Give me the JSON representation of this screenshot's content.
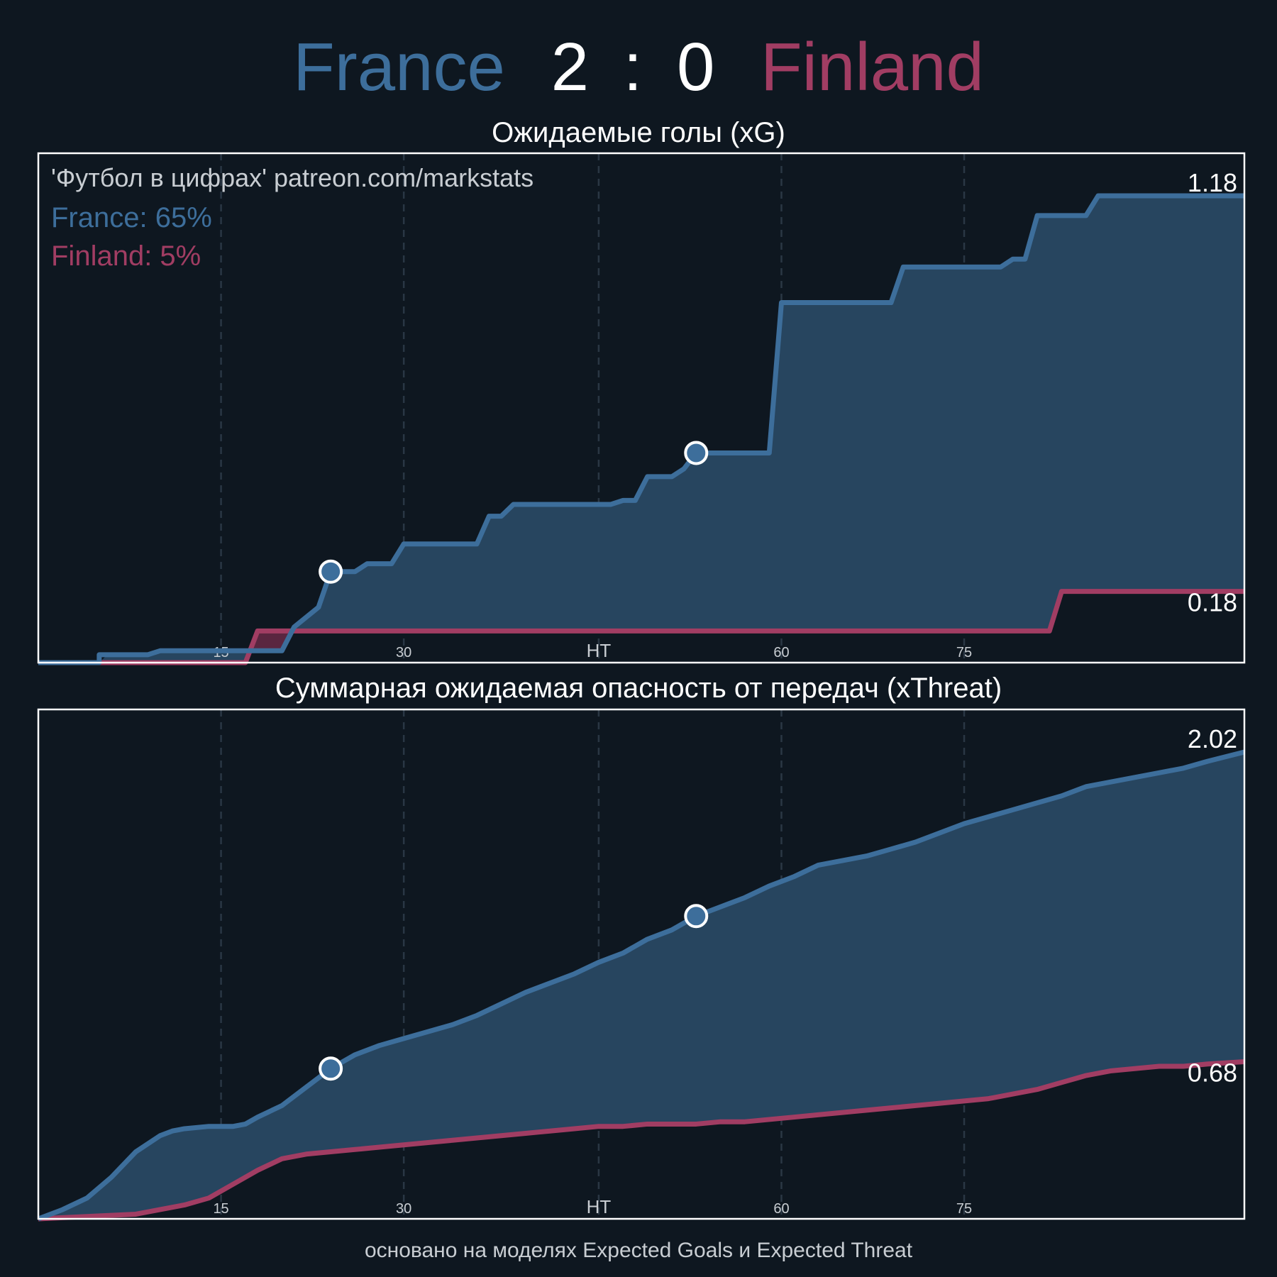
{
  "header": {
    "home_team": "France",
    "home_score": "2",
    "separator": ":",
    "away_score": "0",
    "away_team": "Finland"
  },
  "colors": {
    "home": "#3d6e9b",
    "away": "#a13d63",
    "background": "#0e1720",
    "home_fill": "#27455f",
    "away_fill": "#5a2640",
    "text": "#ffffff",
    "muted": "#c8cdd2"
  },
  "footer": {
    "note": "основано на моделях Expected Goals и Expected Threat"
  },
  "chart_data": [
    {
      "type": "line",
      "title": "Ожидаемые голы (xG)",
      "watermark": "'Футбол в цифрах' patreon.com/markstats",
      "legend_placement": "top-left",
      "legend": [
        {
          "text": "France: 65%",
          "team": "home"
        },
        {
          "text": "Finland: 5%",
          "team": "away"
        }
      ],
      "xlim": [
        0,
        99
      ],
      "ylim": [
        0,
        1.18
      ],
      "grid": true,
      "step": true,
      "ticks": [
        {
          "x": 15,
          "label": "15"
        },
        {
          "x": 30,
          "label": "30"
        },
        {
          "x": 46,
          "label": "HT"
        },
        {
          "x": 61,
          "label": "60"
        },
        {
          "x": 76,
          "label": "75"
        }
      ],
      "series": [
        {
          "name": "France",
          "team": "home",
          "end_label": "1.18",
          "points": [
            [
              0,
              0
            ],
            [
              5,
              0
            ],
            [
              5,
              0.02
            ],
            [
              9,
              0.02
            ],
            [
              10,
              0.03
            ],
            [
              12,
              0.03
            ],
            [
              16,
              0.03
            ],
            [
              20,
              0.03
            ],
            [
              21,
              0.09
            ],
            [
              23,
              0.14
            ],
            [
              24,
              0.23
            ],
            [
              26,
              0.23
            ],
            [
              27,
              0.25
            ],
            [
              29,
              0.25
            ],
            [
              30,
              0.3
            ],
            [
              36,
              0.3
            ],
            [
              37,
              0.37
            ],
            [
              38,
              0.37
            ],
            [
              39,
              0.4
            ],
            [
              47,
              0.4
            ],
            [
              48,
              0.41
            ],
            [
              49,
              0.41
            ],
            [
              50,
              0.47
            ],
            [
              52,
              0.47
            ],
            [
              53,
              0.49
            ],
            [
              54,
              0.53
            ],
            [
              60,
              0.53
            ],
            [
              61,
              0.91
            ],
            [
              70,
              0.91
            ],
            [
              71,
              1.0
            ],
            [
              79,
              1.0
            ],
            [
              80,
              1.02
            ],
            [
              81,
              1.02
            ],
            [
              82,
              1.13
            ],
            [
              86,
              1.13
            ],
            [
              87,
              1.18
            ],
            [
              99,
              1.18
            ]
          ],
          "markers": [
            [
              24,
              0.23
            ],
            [
              54,
              0.53
            ]
          ]
        },
        {
          "name": "Finland",
          "team": "away",
          "end_label": "0.18",
          "points": [
            [
              0,
              0
            ],
            [
              17,
              0
            ],
            [
              18,
              0.08
            ],
            [
              83,
              0.08
            ],
            [
              84,
              0.18
            ],
            [
              99,
              0.18
            ]
          ],
          "markers": []
        }
      ]
    },
    {
      "type": "line",
      "title": "Суммарная ожидаемая опасность от передач (xThreat)",
      "xlim": [
        0,
        99
      ],
      "ylim": [
        0,
        2.02
      ],
      "grid": true,
      "step": false,
      "ticks": [
        {
          "x": 15,
          "label": "15"
        },
        {
          "x": 30,
          "label": "30"
        },
        {
          "x": 46,
          "label": "HT"
        },
        {
          "x": 61,
          "label": "60"
        },
        {
          "x": 76,
          "label": "75"
        }
      ],
      "series": [
        {
          "name": "France",
          "team": "home",
          "end_label": "2.02",
          "points": [
            [
              0,
              0
            ],
            [
              2,
              0.04
            ],
            [
              4,
              0.09
            ],
            [
              6,
              0.18
            ],
            [
              8,
              0.29
            ],
            [
              10,
              0.36
            ],
            [
              11,
              0.38
            ],
            [
              12,
              0.39
            ],
            [
              14,
              0.4
            ],
            [
              16,
              0.4
            ],
            [
              17,
              0.41
            ],
            [
              18,
              0.44
            ],
            [
              20,
              0.49
            ],
            [
              22,
              0.57
            ],
            [
              24,
              0.65
            ],
            [
              26,
              0.71
            ],
            [
              28,
              0.75
            ],
            [
              30,
              0.78
            ],
            [
              32,
              0.81
            ],
            [
              34,
              0.84
            ],
            [
              36,
              0.88
            ],
            [
              38,
              0.93
            ],
            [
              40,
              0.98
            ],
            [
              42,
              1.02
            ],
            [
              44,
              1.06
            ],
            [
              46,
              1.11
            ],
            [
              48,
              1.15
            ],
            [
              49,
              1.18
            ],
            [
              50,
              1.21
            ],
            [
              52,
              1.25
            ],
            [
              54,
              1.31
            ],
            [
              56,
              1.35
            ],
            [
              58,
              1.39
            ],
            [
              60,
              1.44
            ],
            [
              62,
              1.48
            ],
            [
              64,
              1.53
            ],
            [
              66,
              1.55
            ],
            [
              68,
              1.57
            ],
            [
              70,
              1.6
            ],
            [
              72,
              1.63
            ],
            [
              74,
              1.67
            ],
            [
              76,
              1.71
            ],
            [
              78,
              1.74
            ],
            [
              80,
              1.77
            ],
            [
              82,
              1.8
            ],
            [
              84,
              1.83
            ],
            [
              86,
              1.87
            ],
            [
              88,
              1.89
            ],
            [
              90,
              1.91
            ],
            [
              92,
              1.93
            ],
            [
              94,
              1.95
            ],
            [
              96,
              1.98
            ],
            [
              99,
              2.02
            ]
          ],
          "markers": [
            [
              24,
              0.65
            ],
            [
              54,
              1.31
            ]
          ]
        },
        {
          "name": "Finland",
          "team": "away",
          "end_label": "0.68",
          "points": [
            [
              0,
              0
            ],
            [
              4,
              0.01
            ],
            [
              8,
              0.02
            ],
            [
              10,
              0.04
            ],
            [
              12,
              0.06
            ],
            [
              14,
              0.09
            ],
            [
              16,
              0.15
            ],
            [
              18,
              0.21
            ],
            [
              20,
              0.26
            ],
            [
              22,
              0.28
            ],
            [
              24,
              0.29
            ],
            [
              26,
              0.3
            ],
            [
              28,
              0.31
            ],
            [
              30,
              0.32
            ],
            [
              32,
              0.33
            ],
            [
              34,
              0.34
            ],
            [
              36,
              0.35
            ],
            [
              38,
              0.36
            ],
            [
              40,
              0.37
            ],
            [
              42,
              0.38
            ],
            [
              44,
              0.39
            ],
            [
              46,
              0.4
            ],
            [
              48,
              0.4
            ],
            [
              50,
              0.41
            ],
            [
              52,
              0.41
            ],
            [
              54,
              0.41
            ],
            [
              56,
              0.42
            ],
            [
              58,
              0.42
            ],
            [
              60,
              0.43
            ],
            [
              62,
              0.44
            ],
            [
              64,
              0.45
            ],
            [
              66,
              0.46
            ],
            [
              68,
              0.47
            ],
            [
              70,
              0.48
            ],
            [
              72,
              0.49
            ],
            [
              74,
              0.5
            ],
            [
              76,
              0.51
            ],
            [
              78,
              0.52
            ],
            [
              80,
              0.54
            ],
            [
              82,
              0.56
            ],
            [
              84,
              0.59
            ],
            [
              86,
              0.62
            ],
            [
              88,
              0.64
            ],
            [
              90,
              0.65
            ],
            [
              92,
              0.66
            ],
            [
              94,
              0.66
            ],
            [
              96,
              0.67
            ],
            [
              99,
              0.68
            ]
          ],
          "markers": []
        }
      ]
    }
  ]
}
